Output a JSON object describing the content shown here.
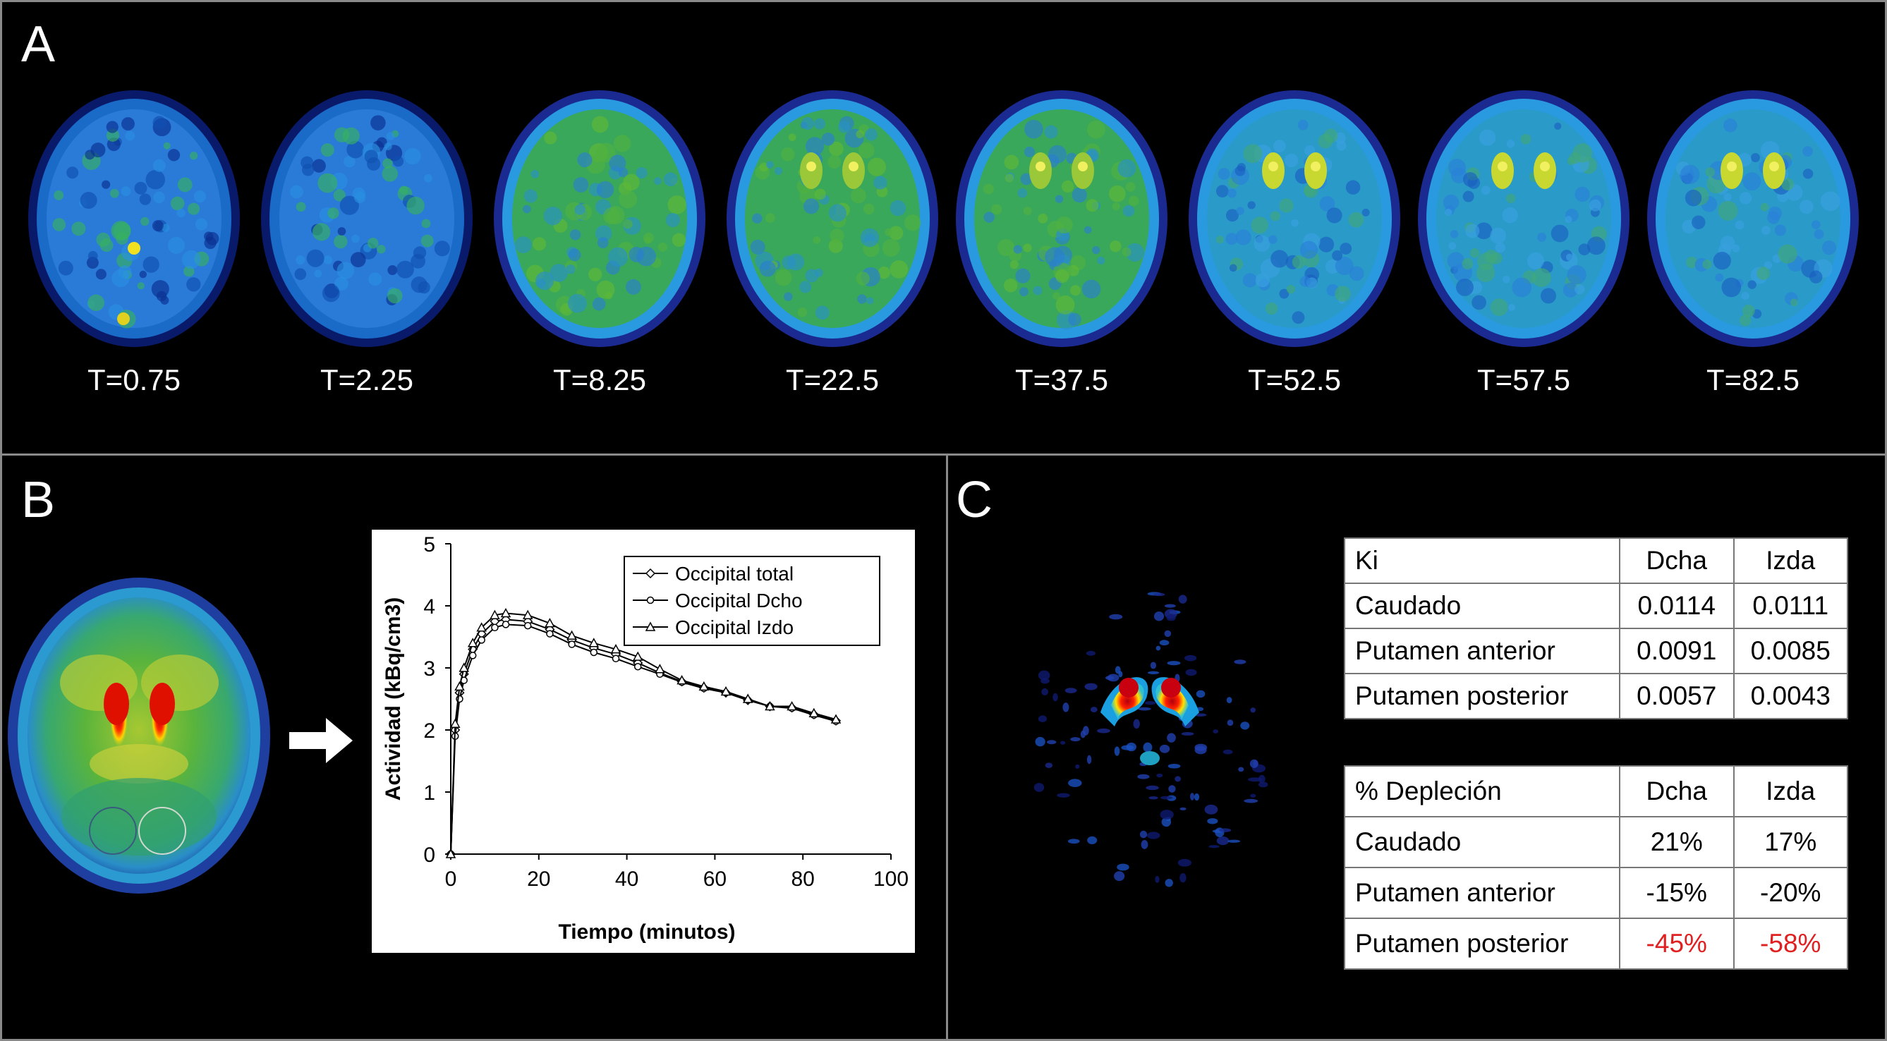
{
  "panels": {
    "a": "A",
    "b": "B",
    "c": "C"
  },
  "panel_a": {
    "frames": [
      "T=0.75",
      "T=2.25",
      "T=8.25",
      "T=22.5",
      "T=37.5",
      "T=52.5",
      "T=57.5",
      "T=82.5"
    ]
  },
  "panel_b": {
    "arrow": "arrow-right-icon"
  },
  "chart_data": {
    "type": "line",
    "xlabel": "Tiempo (minutos)",
    "ylabel": "Actividad (kBq/cm3)",
    "xlim": [
      0,
      100
    ],
    "ylim": [
      0,
      5
    ],
    "x_ticks": [
      "0",
      "20",
      "40",
      "60",
      "80",
      "100"
    ],
    "y_ticks": [
      "0",
      "1",
      "2",
      "3",
      "4",
      "5"
    ],
    "legend_position": "top-right",
    "series": [
      {
        "name": "Occipital total",
        "marker": "diamond",
        "x": [
          0,
          1,
          2,
          3,
          5,
          7,
          10,
          12.5,
          17.5,
          22.5,
          27.5,
          32.5,
          37.5,
          42.5,
          47.5,
          52.5,
          57.5,
          62.5,
          67.5,
          72.5,
          77.5,
          82.5,
          87.5
        ],
        "y": [
          0,
          2.0,
          2.6,
          2.9,
          3.3,
          3.55,
          3.75,
          3.78,
          3.75,
          3.62,
          3.45,
          3.32,
          3.22,
          3.08,
          2.92,
          2.78,
          2.68,
          2.6,
          2.48,
          2.38,
          2.36,
          2.25,
          2.15
        ]
      },
      {
        "name": "Occipital Dcho",
        "marker": "circle",
        "x": [
          0,
          1,
          2,
          3,
          5,
          7,
          10,
          12.5,
          17.5,
          22.5,
          27.5,
          32.5,
          37.5,
          42.5,
          47.5,
          52.5,
          57.5,
          62.5,
          67.5,
          72.5,
          77.5,
          82.5,
          87.5
        ],
        "y": [
          0,
          1.9,
          2.5,
          2.8,
          3.2,
          3.45,
          3.65,
          3.7,
          3.68,
          3.55,
          3.38,
          3.25,
          3.15,
          3.02,
          2.9,
          2.77,
          2.67,
          2.6,
          2.48,
          2.38,
          2.35,
          2.24,
          2.14
        ]
      },
      {
        "name": "Occipital Izdo",
        "marker": "triangle",
        "x": [
          0,
          1,
          2,
          3,
          5,
          7,
          10,
          12.5,
          17.5,
          22.5,
          27.5,
          32.5,
          37.5,
          42.5,
          47.5,
          52.5,
          57.5,
          62.5,
          67.5,
          72.5,
          77.5,
          82.5,
          87.5
        ],
        "y": [
          0,
          2.1,
          2.7,
          3.0,
          3.4,
          3.65,
          3.85,
          3.88,
          3.85,
          3.72,
          3.52,
          3.4,
          3.3,
          3.18,
          2.98,
          2.8,
          2.7,
          2.62,
          2.5,
          2.38,
          2.38,
          2.27,
          2.17
        ]
      }
    ]
  },
  "table_ki": {
    "headers": [
      "Ki",
      "Dcha",
      "Izda"
    ],
    "rows": [
      [
        "Caudado",
        "0.0114",
        "0.0111"
      ],
      [
        "Putamen anterior",
        "0.0091",
        "0.0085"
      ],
      [
        "Putamen posterior",
        "0.0057",
        "0.0043"
      ]
    ]
  },
  "table_depletion": {
    "headers": [
      "% Depleción",
      "Dcha",
      "Izda"
    ],
    "rows": [
      [
        "Caudado",
        "21%",
        "17%"
      ],
      [
        "Putamen anterior",
        "-15%",
        "-20%"
      ],
      [
        "Putamen posterior",
        "-45%",
        "-58%"
      ]
    ],
    "highlight_color": "#e02020"
  }
}
